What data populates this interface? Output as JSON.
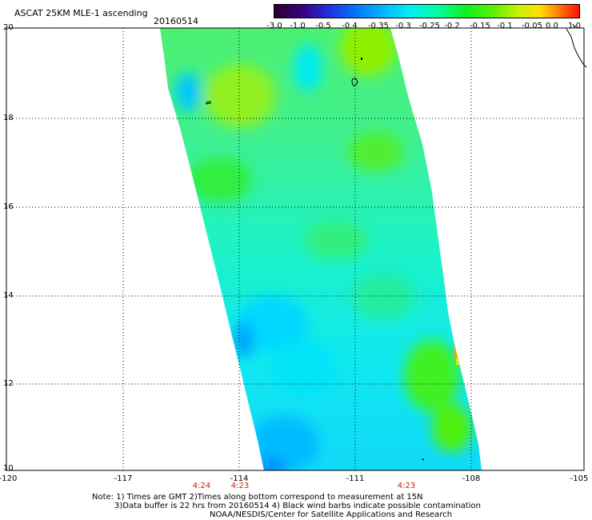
{
  "header": {
    "title": "ASCAT 25KM MLE-1 ascending",
    "date": "20160514"
  },
  "colorbar": {
    "labels": [
      "-3.0",
      "-1.0",
      "-0.5",
      "-0.4",
      "-0.35",
      "-0.3",
      "-0.25",
      "-0.2",
      "-0.15",
      "-0.1",
      "-0.05",
      "0.0",
      "1.0"
    ],
    "colors": [
      "#2a0030",
      "#3a0080",
      "#2030e0",
      "#0080ff",
      "#00c0ff",
      "#00f0f0",
      "#00ff99",
      "#10ee20",
      "#60f000",
      "#c8f000",
      "#ffe000",
      "#ff8000",
      "#ff1010"
    ]
  },
  "map": {
    "y_axis_labels": [
      "20",
      "18",
      "16",
      "14",
      "12",
      "10"
    ],
    "x_axis_labels": [
      "-120",
      "-117",
      "-114",
      "-111",
      "-108",
      "-105"
    ],
    "time_labels": [
      "4:24",
      "4:23",
      "4:23"
    ]
  },
  "notes": {
    "line1": "Note: 1) Times are GMT 2)Times along bottom correspond to measurement at 15N",
    "line2": "3)Data buffer is 22 hrs from 20160514 4) Black wind barbs indicate possible contamination",
    "line3": "NOAA/NESDIS/Center for Satellite Applications and Research"
  }
}
